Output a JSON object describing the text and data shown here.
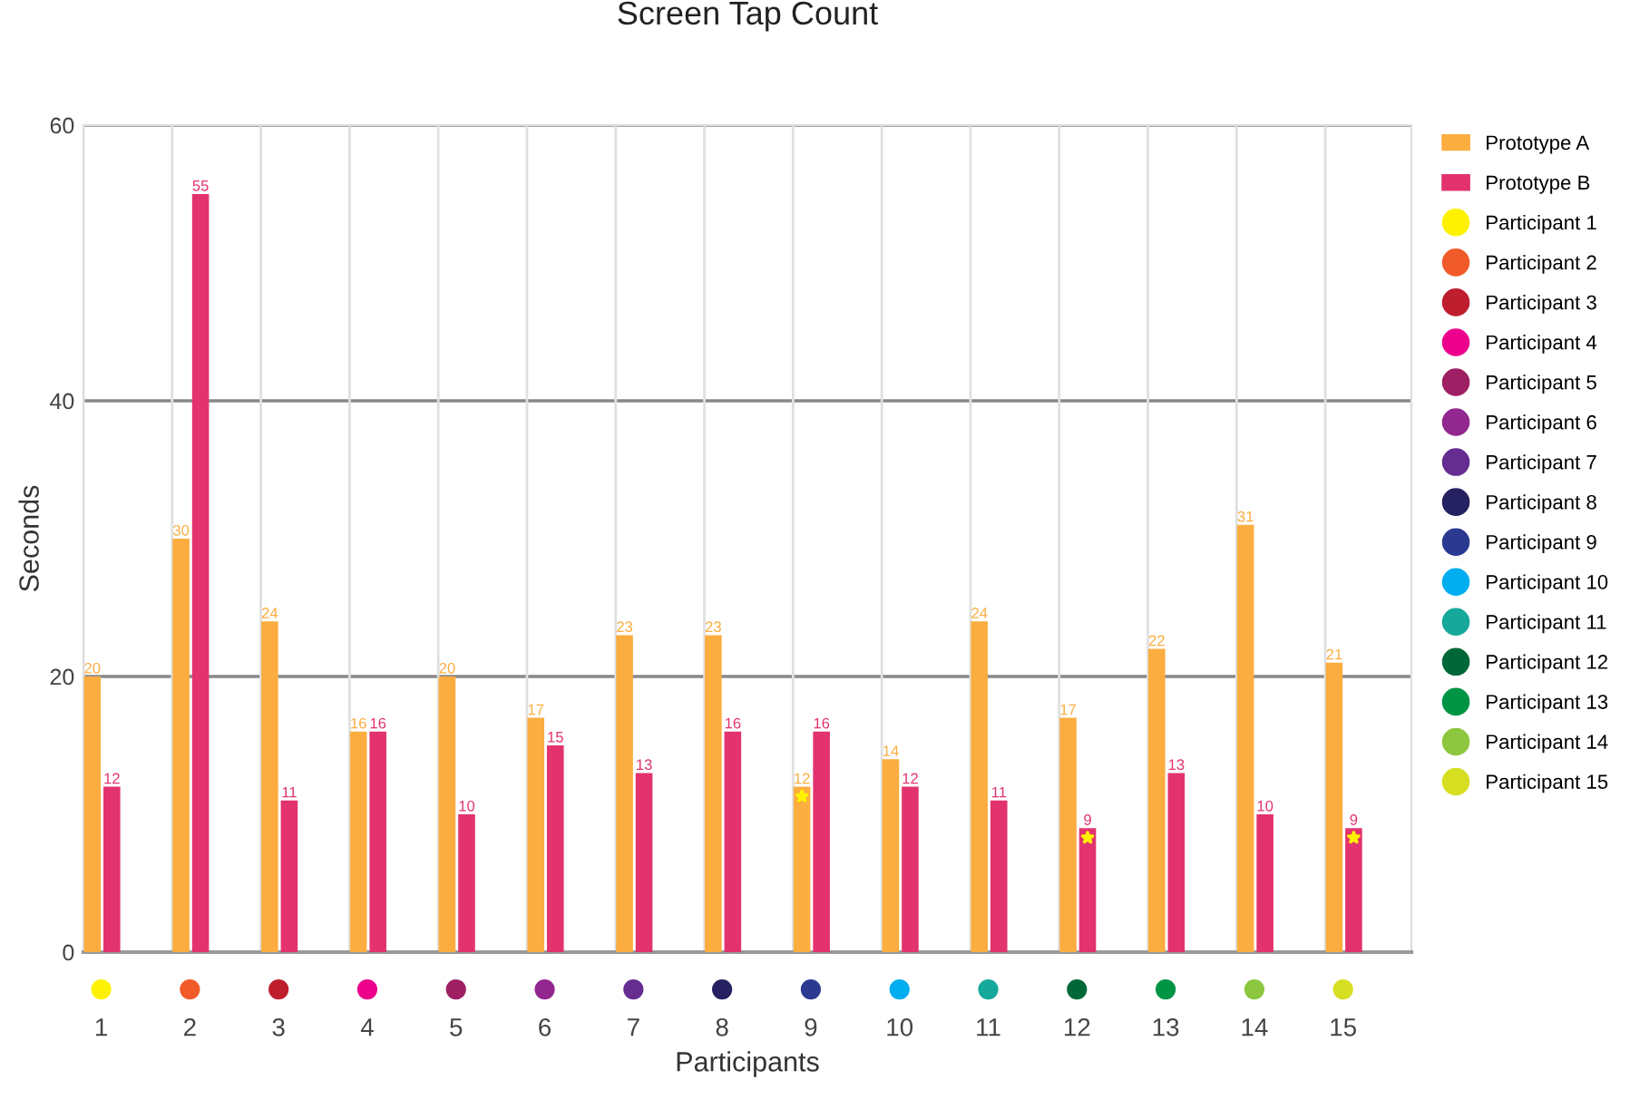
{
  "chart_data": {
    "type": "bar",
    "title": "Screen Tap Count",
    "xlabel": "Participants",
    "ylabel": "Seconds",
    "categories": [
      "1",
      "2",
      "3",
      "4",
      "5",
      "6",
      "7",
      "8",
      "9",
      "10",
      "11",
      "12",
      "13",
      "14",
      "15"
    ],
    "series": [
      {
        "name": "Prototype A",
        "color": "#fbad3f",
        "values": [
          20,
          30,
          24,
          16,
          20,
          17,
          23,
          23,
          12,
          14,
          24,
          17,
          22,
          31,
          21
        ]
      },
      {
        "name": "Prototype B",
        "color": "#e2336e",
        "values": [
          12,
          55,
          11,
          16,
          10,
          15,
          13,
          16,
          16,
          12,
          11,
          9,
          13,
          10,
          9
        ]
      },
      {
        "name": "Participant 1",
        "type": "scatter",
        "color": "#fff200",
        "values": [
          null,
          null,
          null,
          null,
          null,
          null,
          null,
          null,
          null,
          null,
          null,
          null,
          null,
          null,
          null
        ]
      },
      {
        "name": "Participant 2",
        "type": "scatter",
        "color": "#f15a29",
        "values": [
          null,
          null,
          null,
          null,
          null,
          null,
          null,
          null,
          null,
          null,
          null,
          null,
          null,
          null,
          null
        ]
      },
      {
        "name": "Participant 3",
        "type": "scatter",
        "color": "#be1e2d",
        "values": [
          null,
          null,
          null,
          null,
          null,
          null,
          null,
          null,
          null,
          null,
          null,
          null,
          null,
          null,
          null
        ]
      },
      {
        "name": "Participant 4",
        "type": "scatter",
        "color": "#ec008c",
        "values": [
          null,
          null,
          null,
          null,
          null,
          null,
          null,
          null,
          null,
          null,
          null,
          null,
          null,
          null,
          null
        ]
      },
      {
        "name": "Participant 5",
        "type": "scatter",
        "color": "#9e1f63",
        "values": [
          null,
          null,
          null,
          null,
          null,
          null,
          null,
          null,
          null,
          null,
          null,
          null,
          null,
          null,
          null
        ]
      },
      {
        "name": "Participant 6",
        "type": "scatter",
        "color": "#92278f",
        "values": [
          null,
          null,
          null,
          null,
          null,
          null,
          null,
          null,
          null,
          null,
          null,
          null,
          null,
          null,
          null
        ]
      },
      {
        "name": "Participant 7",
        "type": "scatter",
        "color": "#662d91",
        "values": [
          null,
          null,
          null,
          null,
          null,
          null,
          null,
          null,
          null,
          null,
          null,
          null,
          null,
          null,
          null
        ]
      },
      {
        "name": "Participant 8",
        "type": "scatter",
        "color": "#262262",
        "values": [
          null,
          null,
          null,
          null,
          null,
          null,
          null,
          null,
          null,
          null,
          null,
          null,
          null,
          null,
          null
        ]
      },
      {
        "name": "Participant 9",
        "type": "scatter",
        "color": "#2b3990",
        "values": [
          null,
          null,
          null,
          null,
          null,
          null,
          null,
          null,
          null,
          null,
          null,
          null,
          null,
          null,
          null
        ]
      },
      {
        "name": "Participant 10",
        "type": "scatter",
        "color": "#00aeef",
        "values": [
          null,
          null,
          null,
          null,
          null,
          null,
          null,
          null,
          null,
          null,
          null,
          null,
          null,
          null,
          null
        ]
      },
      {
        "name": "Participant 11",
        "type": "scatter",
        "color": "#16a99b",
        "values": [
          null,
          null,
          null,
          null,
          null,
          null,
          null,
          null,
          null,
          null,
          null,
          null,
          null,
          null,
          null
        ]
      },
      {
        "name": "Participant 12",
        "type": "scatter",
        "color": "#006838",
        "values": [
          null,
          null,
          null,
          null,
          null,
          null,
          null,
          null,
          null,
          null,
          null,
          null,
          null,
          null,
          null
        ]
      },
      {
        "name": "Participant 13",
        "type": "scatter",
        "color": "#009444",
        "values": [
          null,
          null,
          null,
          null,
          null,
          null,
          null,
          null,
          null,
          null,
          null,
          null,
          null,
          null,
          null
        ]
      },
      {
        "name": "Participant 14",
        "type": "scatter",
        "color": "#8dc63f",
        "values": [
          null,
          null,
          null,
          null,
          null,
          null,
          null,
          null,
          null,
          null,
          null,
          null,
          null,
          null,
          null
        ]
      },
      {
        "name": "Participant 15",
        "type": "scatter",
        "color": "#d7df23",
        "values": [
          null,
          null,
          null,
          null,
          null,
          null,
          null,
          null,
          null,
          null,
          null,
          null,
          null,
          null,
          null
        ]
      }
    ],
    "ylim": [
      0,
      60
    ],
    "yticks": [
      0,
      20,
      40,
      60
    ],
    "grid": true,
    "legend": "right",
    "data_labels": true
  }
}
